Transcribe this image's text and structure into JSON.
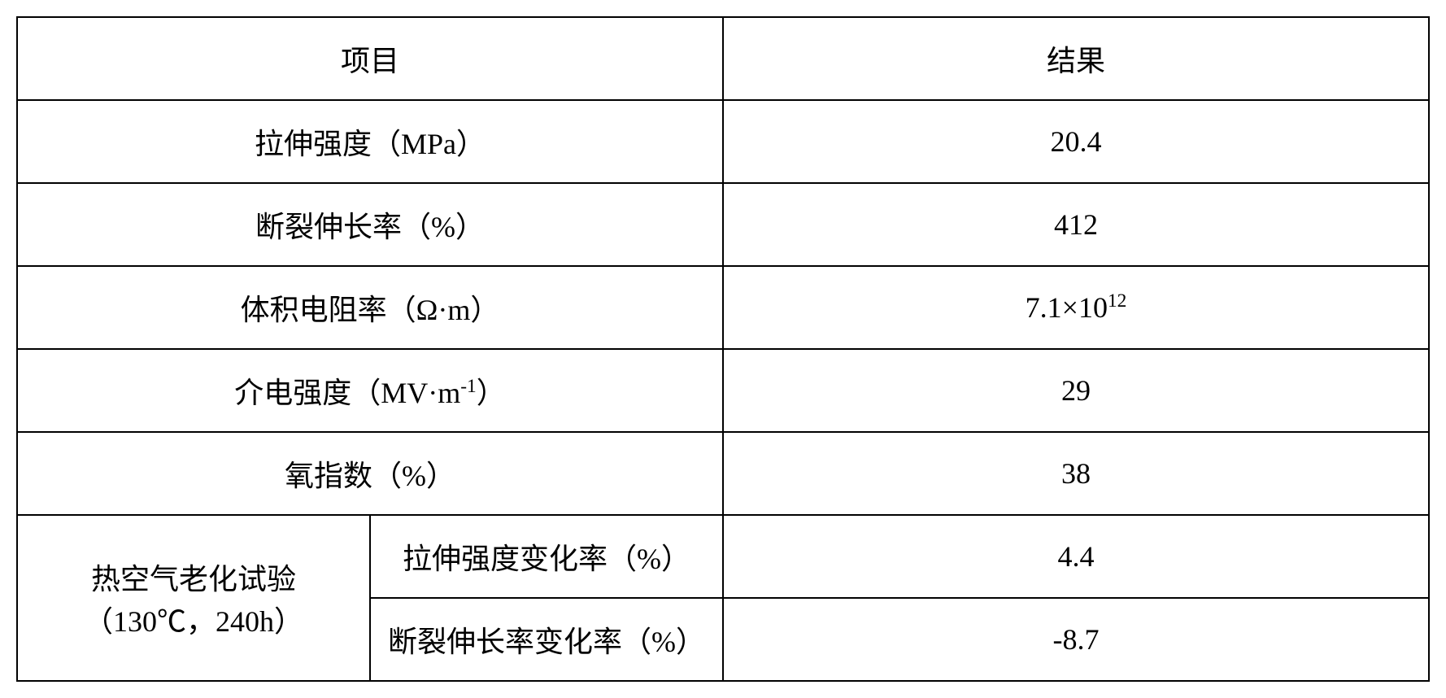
{
  "table": {
    "header": {
      "col1": "项目",
      "col2": "结果"
    },
    "rows": [
      {
        "label": "拉伸强度（MPa）",
        "value": "20.4"
      },
      {
        "label": "断裂伸长率（%）",
        "value": "412"
      },
      {
        "label_html": "体积电阻率（Ω·m）",
        "value_html": "7.1×10<sup>12</sup>"
      },
      {
        "label_html": "介电强度（MV·m<sup>-1</sup>）",
        "value": "29"
      },
      {
        "label": "氧指数（%）",
        "value": "38"
      }
    ],
    "aging_test": {
      "condition": "热空气老化试验（130℃，240h）",
      "sub_rows": [
        {
          "label": "拉伸强度变化率（%）",
          "value": "4.4"
        },
        {
          "label": "断裂伸长率变化率（%）",
          "value": "-8.7"
        }
      ]
    }
  },
  "styling": {
    "border_color": "#000000",
    "border_width": 2,
    "background_color": "#ffffff",
    "text_color": "#000000",
    "font_family": "SimSun",
    "font_size": 36,
    "cell_padding": "24px 10px",
    "column_widths": [
      "25%",
      "25%",
      "50%"
    ]
  }
}
